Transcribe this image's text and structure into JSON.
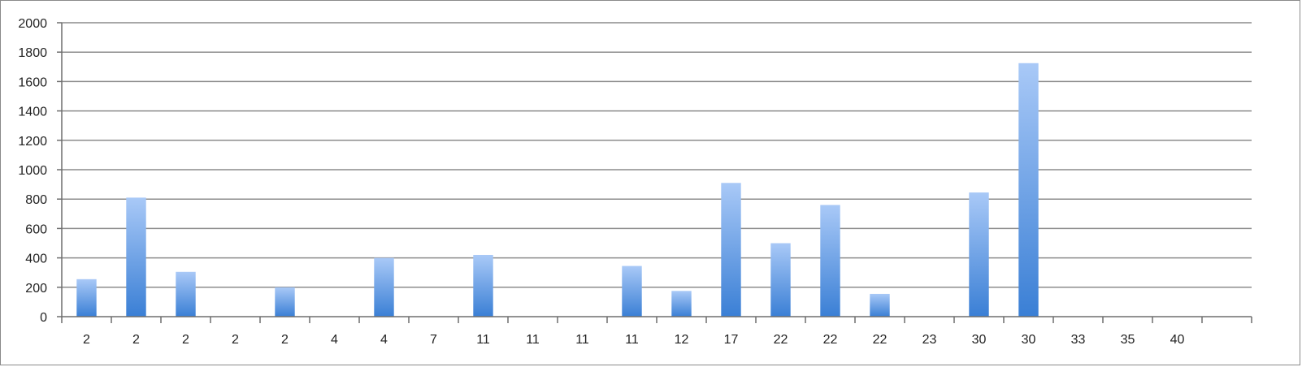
{
  "chart_data": {
    "type": "bar",
    "title": "",
    "xlabel": "",
    "ylabel": "",
    "ylim": [
      0,
      2000
    ],
    "ytick_step": 200,
    "yticks": [
      "0",
      "200",
      "400",
      "600",
      "800",
      "1000",
      "1200",
      "1400",
      "1600",
      "1800",
      "2000"
    ],
    "grid": true,
    "legend": "none",
    "categories": [
      "2",
      "2",
      "2",
      "2",
      "2",
      "4",
      "4",
      "7",
      "11",
      "11",
      "11",
      "11",
      "12",
      "17",
      "22",
      "22",
      "22",
      "23",
      "30",
      "30",
      "33",
      "35",
      "40",
      ""
    ],
    "values": [
      255,
      810,
      305,
      0,
      200,
      0,
      400,
      0,
      420,
      0,
      0,
      345,
      175,
      910,
      500,
      760,
      155,
      0,
      845,
      1725,
      0,
      0,
      0,
      0
    ],
    "colors": {
      "bar_top": "#a9c9f7",
      "bar_bottom": "#3a7fd5",
      "grid": "#8c8c8c",
      "axis": "#6e6e6e"
    }
  }
}
